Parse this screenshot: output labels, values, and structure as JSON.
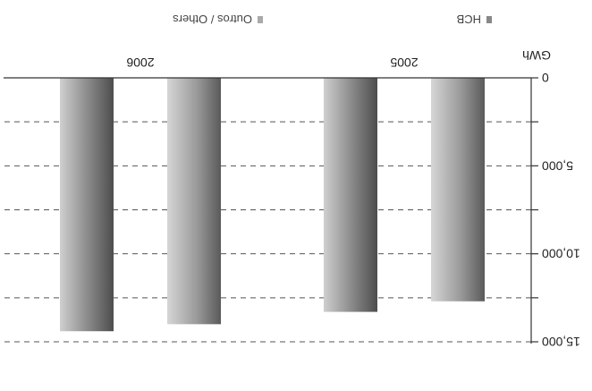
{
  "chart_data": {
    "type": "bar",
    "orientation": "upside-down",
    "ylabel": "GWh",
    "y_ticks": [
      "0",
      "5,000",
      "10,000",
      "15,000"
    ],
    "ylim": [
      0,
      15000
    ],
    "categories": [
      "2005",
      "2006"
    ],
    "series": [
      {
        "name": "HCB",
        "values": [
          12700,
          14000
        ]
      },
      {
        "name": "Outros / Others",
        "values": [
          13300,
          14400
        ]
      }
    ],
    "grid": true,
    "legend_position": "bottom"
  }
}
